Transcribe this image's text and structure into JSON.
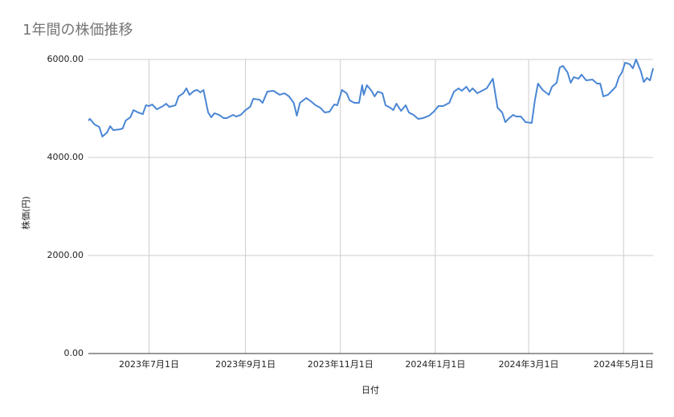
{
  "chart_data": {
    "type": "line",
    "title": "1年間の株価推移",
    "x_label": "日付",
    "y_label": "株価(円)",
    "x": [
      "2023-05-23",
      "2023-05-24",
      "2023-05-27",
      "2023-05-30",
      "2023-06-01",
      "2023-06-04",
      "2023-06-06",
      "2023-06-08",
      "2023-06-12",
      "2023-06-14",
      "2023-06-16",
      "2023-06-19",
      "2023-06-21",
      "2023-06-24",
      "2023-06-27",
      "2023-06-29",
      "2023-07-01",
      "2023-07-03",
      "2023-07-06",
      "2023-07-10",
      "2023-07-12",
      "2023-07-14",
      "2023-07-18",
      "2023-07-20",
      "2023-07-23",
      "2023-07-25",
      "2023-07-27",
      "2023-07-30",
      "2023-08-01",
      "2023-08-03",
      "2023-08-05",
      "2023-08-08",
      "2023-08-10",
      "2023-08-12",
      "2023-08-15",
      "2023-08-18",
      "2023-08-20",
      "2023-08-24",
      "2023-08-26",
      "2023-08-29",
      "2023-09-01",
      "2023-09-04",
      "2023-09-06",
      "2023-09-10",
      "2023-09-12",
      "2023-09-15",
      "2023-09-19",
      "2023-09-23",
      "2023-09-26",
      "2023-09-29",
      "2023-10-02",
      "2023-10-04",
      "2023-10-06",
      "2023-10-10",
      "2023-10-13",
      "2023-10-16",
      "2023-10-19",
      "2023-10-22",
      "2023-10-25",
      "2023-10-28",
      "2023-10-30",
      "2023-11-02",
      "2023-11-05",
      "2023-11-07",
      "2023-11-10",
      "2023-11-13",
      "2023-11-15",
      "2023-11-16",
      "2023-11-18",
      "2023-11-21",
      "2023-11-23",
      "2023-11-25",
      "2023-11-28",
      "2023-11-30",
      "2023-12-03",
      "2023-12-05",
      "2023-12-07",
      "2023-12-10",
      "2023-12-13",
      "2023-12-15",
      "2023-12-18",
      "2023-12-21",
      "2023-12-24",
      "2023-12-28",
      "2023-12-31",
      "2024-01-03",
      "2024-01-06",
      "2024-01-10",
      "2024-01-13",
      "2024-01-16",
      "2024-01-18",
      "2024-01-21",
      "2024-01-23",
      "2024-01-25",
      "2024-01-28",
      "2024-01-31",
      "2024-02-03",
      "2024-02-07",
      "2024-02-10",
      "2024-02-13",
      "2024-02-15",
      "2024-02-17",
      "2024-02-20",
      "2024-02-22",
      "2024-02-25",
      "2024-02-28",
      "2024-03-03",
      "2024-03-05",
      "2024-03-07",
      "2024-03-10",
      "2024-03-14",
      "2024-03-16",
      "2024-03-19",
      "2024-03-21",
      "2024-03-23",
      "2024-03-26",
      "2024-03-28",
      "2024-03-30",
      "2024-04-02",
      "2024-04-04",
      "2024-04-07",
      "2024-04-11",
      "2024-04-14",
      "2024-04-16",
      "2024-04-18",
      "2024-04-21",
      "2024-04-24",
      "2024-04-26",
      "2024-04-28",
      "2024-04-30",
      "2024-05-02",
      "2024-05-05",
      "2024-05-07",
      "2024-05-09",
      "2024-05-12",
      "2024-05-14",
      "2024-05-16",
      "2024-05-18",
      "2024-05-20"
    ],
    "series": [
      {
        "name": "株価(円)",
        "color": "#4a86d4",
        "values": [
          4754,
          4787,
          4672,
          4623,
          4426,
          4508,
          4639,
          4557,
          4574,
          4590,
          4754,
          4820,
          4967,
          4918,
          4885,
          5066,
          5049,
          5082,
          4984,
          5049,
          5098,
          5033,
          5066,
          5246,
          5311,
          5410,
          5279,
          5361,
          5377,
          5328,
          5377,
          4918,
          4820,
          4902,
          4869,
          4803,
          4803,
          4869,
          4836,
          4869,
          4967,
          5033,
          5197,
          5180,
          5115,
          5344,
          5361,
          5279,
          5311,
          5246,
          5115,
          4852,
          5115,
          5213,
          5148,
          5066,
          5016,
          4918,
          4934,
          5082,
          5066,
          5377,
          5311,
          5164,
          5115,
          5115,
          5475,
          5279,
          5475,
          5361,
          5246,
          5344,
          5311,
          5066,
          5016,
          4967,
          5098,
          4951,
          5066,
          4918,
          4869,
          4787,
          4803,
          4852,
          4934,
          5049,
          5049,
          5115,
          5344,
          5410,
          5361,
          5443,
          5344,
          5410,
          5311,
          5361,
          5410,
          5607,
          5016,
          4918,
          4721,
          4787,
          4869,
          4836,
          4836,
          4721,
          4705,
          5164,
          5508,
          5377,
          5279,
          5443,
          5525,
          5836,
          5869,
          5738,
          5525,
          5639,
          5607,
          5689,
          5574,
          5590,
          5508,
          5508,
          5246,
          5279,
          5377,
          5443,
          5639,
          5738,
          5934,
          5902,
          5820,
          6000,
          5770,
          5541,
          5623,
          5574,
          5820
        ]
      }
    ],
    "xlim": [
      "2023-05-23",
      "2024-05-20"
    ],
    "xticks": [
      {
        "value": "2023-07-01",
        "label": "2023年7月1日"
      },
      {
        "value": "2023-09-01",
        "label": "2023年9月1日"
      },
      {
        "value": "2023-11-01",
        "label": "2023年11月1日"
      },
      {
        "value": "2024-01-01",
        "label": "2024年1月1日"
      },
      {
        "value": "2024-03-01",
        "label": "2024年3月1日"
      },
      {
        "value": "2024-05-01",
        "label": "2024年5月1日"
      }
    ],
    "ylim": [
      0,
      6000
    ],
    "yticks": [
      {
        "value": 0,
        "label": "0.00"
      },
      {
        "value": 2000,
        "label": "2000.00"
      },
      {
        "value": 4000,
        "label": "4000.00"
      },
      {
        "value": 6000,
        "label": "6000.00"
      }
    ],
    "grid": true
  }
}
